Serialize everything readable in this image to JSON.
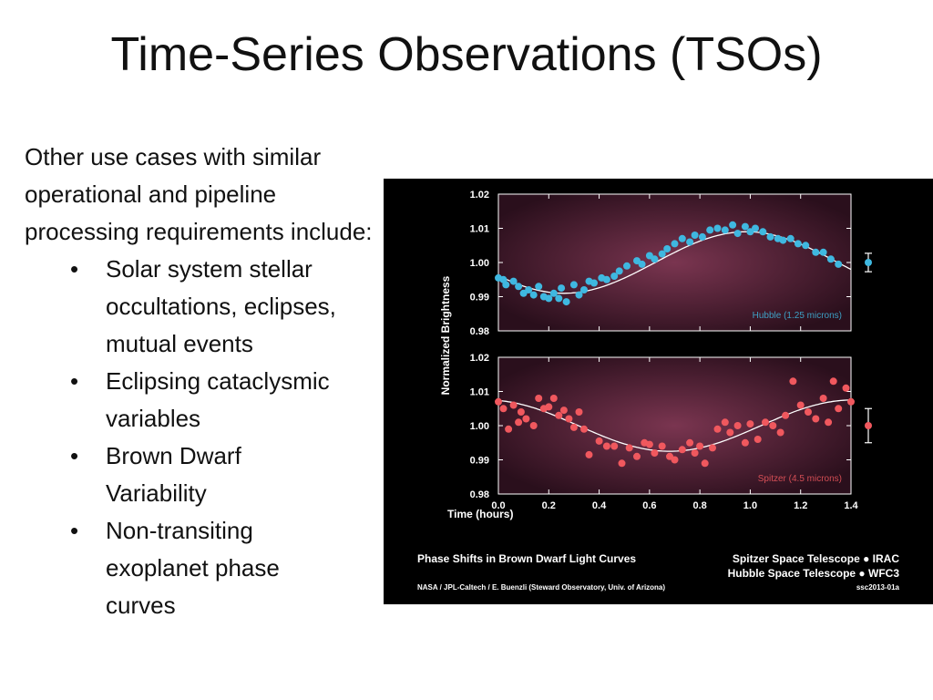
{
  "slide": {
    "title": "Time-Series Observations (TSOs)",
    "intro": "Other use cases with similar operational and pipeline processing requirements include:",
    "bullets": [
      {
        "lines": [
          "Solar system stellar",
          "occultations, eclipses,",
          "mutual events"
        ]
      },
      {
        "lines": [
          "Eclipsing cataclysmic",
          "variables"
        ]
      },
      {
        "lines": [
          "Brown Dwarf",
          "Variability"
        ]
      },
      {
        "lines": [
          "Non-transiting",
          "exoplanet phase",
          "curves"
        ]
      }
    ]
  },
  "chart_data": [
    {
      "type": "scatter",
      "panel": "top",
      "label": "Hubble (1.25 microns)",
      "ylabel": "Normalized Brightness",
      "xlabel": "Time (hours)",
      "xlim": [
        0,
        1.4
      ],
      "ylim": [
        0.98,
        1.02
      ],
      "yticks": [
        "1.02",
        "1.01",
        "1.00",
        "0.99",
        "0.98"
      ],
      "point_color": "#3fb8e0",
      "points": [
        [
          0.0,
          0.9955
        ],
        [
          0.02,
          0.995
        ],
        [
          0.03,
          0.9935
        ],
        [
          0.06,
          0.9945
        ],
        [
          0.08,
          0.993
        ],
        [
          0.1,
          0.991
        ],
        [
          0.12,
          0.992
        ],
        [
          0.14,
          0.9905
        ],
        [
          0.16,
          0.993
        ],
        [
          0.18,
          0.99
        ],
        [
          0.2,
          0.9895
        ],
        [
          0.22,
          0.991
        ],
        [
          0.24,
          0.9895
        ],
        [
          0.25,
          0.9925
        ],
        [
          0.27,
          0.9885
        ],
        [
          0.3,
          0.9935
        ],
        [
          0.32,
          0.9905
        ],
        [
          0.34,
          0.992
        ],
        [
          0.36,
          0.9945
        ],
        [
          0.38,
          0.994
        ],
        [
          0.41,
          0.9955
        ],
        [
          0.43,
          0.995
        ],
        [
          0.46,
          0.996
        ],
        [
          0.48,
          0.9975
        ],
        [
          0.51,
          0.999
        ],
        [
          0.55,
          1.0005
        ],
        [
          0.57,
          0.9995
        ],
        [
          0.6,
          1.002
        ],
        [
          0.62,
          1.001
        ],
        [
          0.65,
          1.0025
        ],
        [
          0.67,
          1.004
        ],
        [
          0.7,
          1.0055
        ],
        [
          0.73,
          1.007
        ],
        [
          0.76,
          1.006
        ],
        [
          0.78,
          1.008
        ],
        [
          0.81,
          1.0075
        ],
        [
          0.84,
          1.0095
        ],
        [
          0.87,
          1.01
        ],
        [
          0.9,
          1.0095
        ],
        [
          0.93,
          1.011
        ],
        [
          0.95,
          1.0085
        ],
        [
          0.98,
          1.0105
        ],
        [
          1.0,
          1.009
        ],
        [
          1.02,
          1.01
        ],
        [
          1.05,
          1.009
        ],
        [
          1.08,
          1.0075
        ],
        [
          1.11,
          1.007
        ],
        [
          1.13,
          1.0065
        ],
        [
          1.16,
          1.007
        ],
        [
          1.19,
          1.0055
        ],
        [
          1.22,
          1.005
        ],
        [
          1.26,
          1.003
        ],
        [
          1.29,
          1.003
        ],
        [
          1.32,
          1.001
        ],
        [
          1.35,
          0.9995
        ]
      ],
      "curve": {
        "amplitude": 0.009,
        "center": 1.0,
        "period": 1.45,
        "min_at": 0.26
      },
      "error_bar": {
        "y": 1.0,
        "err": 0.0027
      }
    },
    {
      "type": "scatter",
      "panel": "bottom",
      "label": "Spitzer (4.5 microns)",
      "xlim": [
        0,
        1.4
      ],
      "ylim": [
        0.98,
        1.02
      ],
      "yticks": [
        "1.02",
        "1.01",
        "1.00",
        "0.99",
        "0.98"
      ],
      "xticks": [
        "0.0",
        "0.2",
        "0.4",
        "0.6",
        "0.8",
        "1.0",
        "1.2",
        "1.4"
      ],
      "point_color": "#f0585e",
      "points": [
        [
          0.0,
          1.007
        ],
        [
          0.02,
          1.005
        ],
        [
          0.04,
          0.999
        ],
        [
          0.06,
          1.006
        ],
        [
          0.08,
          1.001
        ],
        [
          0.09,
          1.004
        ],
        [
          0.11,
          1.002
        ],
        [
          0.14,
          1.0
        ],
        [
          0.16,
          1.008
        ],
        [
          0.18,
          1.005
        ],
        [
          0.2,
          1.0055
        ],
        [
          0.22,
          1.008
        ],
        [
          0.24,
          1.003
        ],
        [
          0.26,
          1.0045
        ],
        [
          0.28,
          1.002
        ],
        [
          0.3,
          0.9995
        ],
        [
          0.32,
          1.004
        ],
        [
          0.34,
          0.999
        ],
        [
          0.36,
          0.9915
        ],
        [
          0.4,
          0.9955
        ],
        [
          0.43,
          0.994
        ],
        [
          0.46,
          0.994
        ],
        [
          0.49,
          0.989
        ],
        [
          0.52,
          0.9935
        ],
        [
          0.55,
          0.991
        ],
        [
          0.58,
          0.995
        ],
        [
          0.6,
          0.9945
        ],
        [
          0.62,
          0.992
        ],
        [
          0.65,
          0.994
        ],
        [
          0.68,
          0.991
        ],
        [
          0.7,
          0.99
        ],
        [
          0.73,
          0.993
        ],
        [
          0.76,
          0.995
        ],
        [
          0.78,
          0.992
        ],
        [
          0.8,
          0.994
        ],
        [
          0.82,
          0.989
        ],
        [
          0.85,
          0.9935
        ],
        [
          0.87,
          0.999
        ],
        [
          0.9,
          1.001
        ],
        [
          0.92,
          0.998
        ],
        [
          0.95,
          1.0
        ],
        [
          0.98,
          0.995
        ],
        [
          1.0,
          1.0005
        ],
        [
          1.03,
          0.996
        ],
        [
          1.06,
          1.001
        ],
        [
          1.09,
          1.0
        ],
        [
          1.12,
          0.998
        ],
        [
          1.14,
          1.003
        ],
        [
          1.17,
          1.013
        ],
        [
          1.2,
          1.006
        ],
        [
          1.23,
          1.004
        ],
        [
          1.26,
          1.002
        ],
        [
          1.29,
          1.008
        ],
        [
          1.31,
          1.001
        ],
        [
          1.33,
          1.013
        ],
        [
          1.35,
          1.005
        ],
        [
          1.38,
          1.011
        ],
        [
          1.4,
          1.007
        ]
      ],
      "curve": {
        "amplitude": 0.0075,
        "center": 1.0,
        "period": 1.45,
        "min_at": 0.68
      },
      "error_bar": {
        "y": 1.0,
        "err": 0.005
      }
    }
  ],
  "figure_text": {
    "caption_title": "Phase Shifts in Brown Dwarf Light Curves",
    "credit": "NASA / JPL-Caltech / E. Buenzli (Steward Observatory, Univ. of Arizona)",
    "telescope_1": "Spitzer Space Telescope ● IRAC",
    "telescope_2": "Hubble Space Telescope ● WFC3",
    "image_id": "ssc2013-01a"
  },
  "colors": {
    "panel_bg_center": "#7a3550",
    "panel_bg_edge": "#2a0f1c",
    "hubble": "#3fb8e0",
    "spitzer": "#f0585e"
  }
}
